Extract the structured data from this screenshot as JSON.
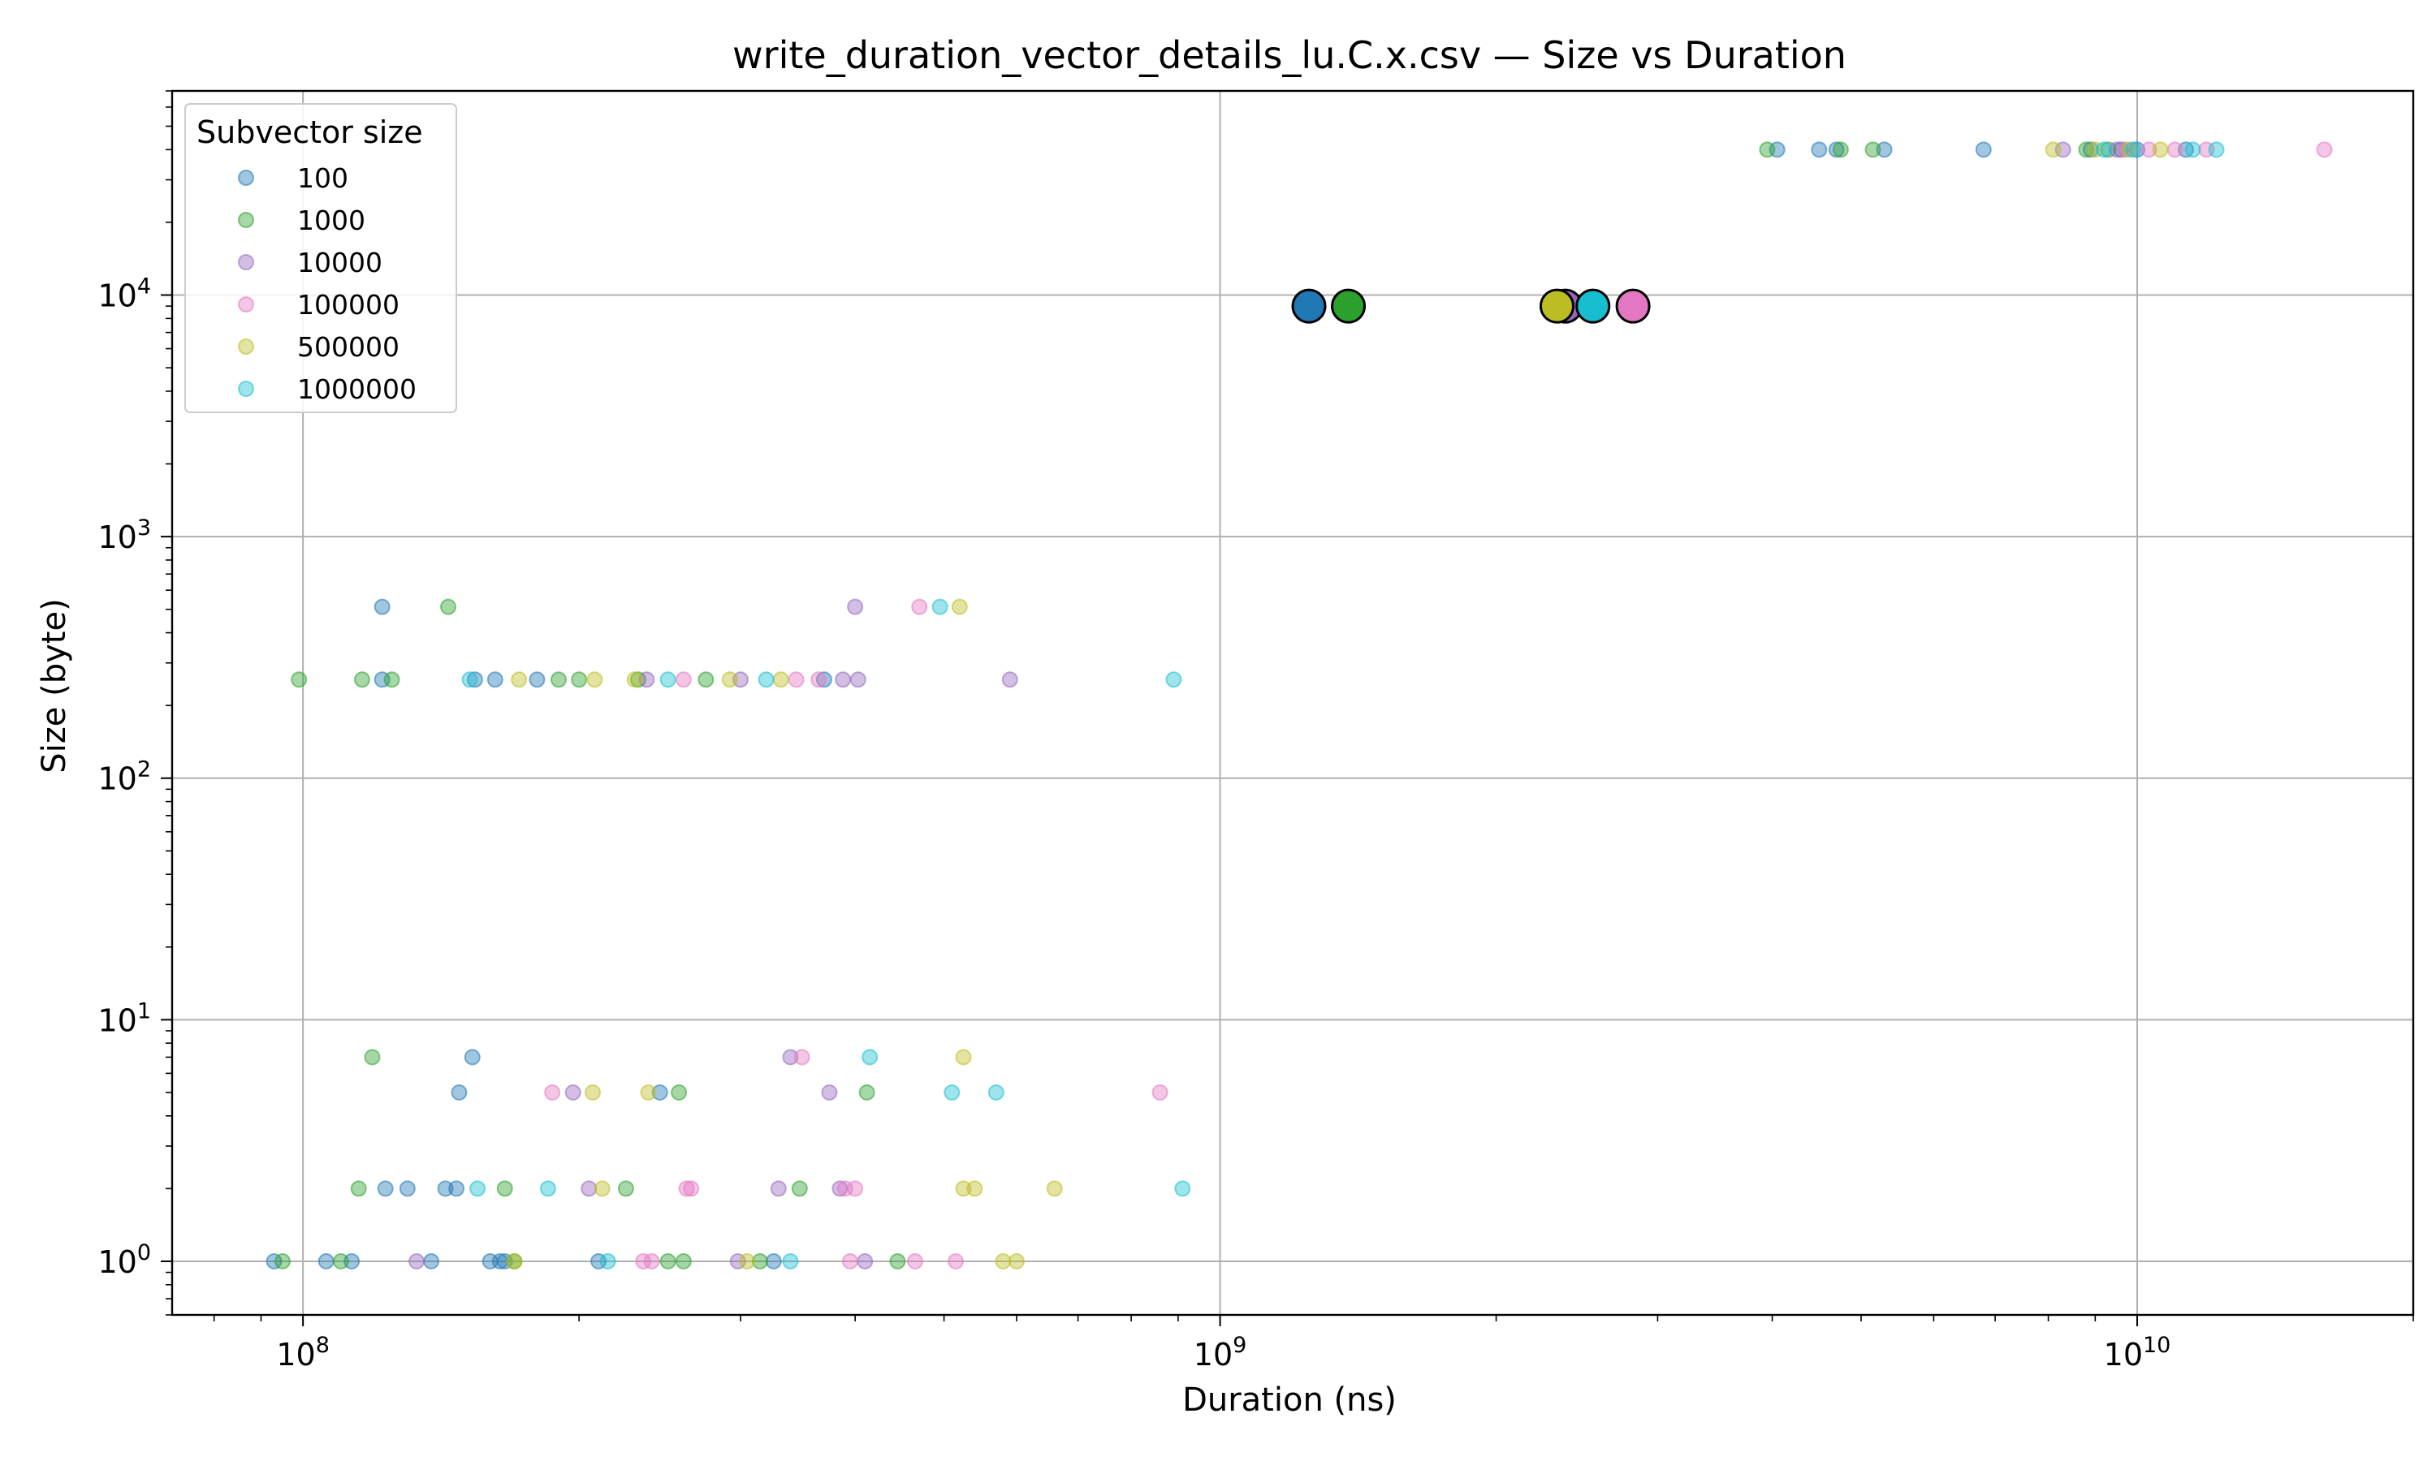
{
  "chart_data": {
    "type": "scatter",
    "title": "write_duration_vector_details_lu.C.x.csv — Size vs Duration",
    "xlabel": "Duration (ns)",
    "ylabel": "Size (byte)",
    "xscale": "log",
    "yscale": "log",
    "xlim": [
      72000000.0,
      20000000000.0
    ],
    "ylim": [
      0.6,
      70000
    ],
    "xticks": [
      {
        "value": 100000000.0,
        "base": "10",
        "exp": "8"
      },
      {
        "value": 1000000000.0,
        "base": "10",
        "exp": "9"
      },
      {
        "value": 10000000000.0,
        "base": "10",
        "exp": "10"
      }
    ],
    "yticks": [
      {
        "value": 1,
        "base": "10",
        "exp": "0"
      },
      {
        "value": 10,
        "base": "10",
        "exp": "1"
      },
      {
        "value": 100,
        "base": "10",
        "exp": "2"
      },
      {
        "value": 1000,
        "base": "10",
        "exp": "3"
      },
      {
        "value": 10000,
        "base": "10",
        "exp": "4"
      }
    ],
    "grid": true,
    "legend": {
      "title": "Subvector size",
      "position": "top-left"
    },
    "series": [
      {
        "name": "100",
        "color": "#1f77b4",
        "points": [
          [
            93000000.0,
            1
          ],
          [
            106000000.0,
            1
          ],
          [
            113000000.0,
            1
          ],
          [
            138000000.0,
            1
          ],
          [
            160000000.0,
            1
          ],
          [
            164000000.0,
            1
          ],
          [
            166000000.0,
            1
          ],
          [
            210000000.0,
            1
          ],
          [
            326000000.0,
            1
          ],
          [
            123000000.0,
            2
          ],
          [
            130000000.0,
            2
          ],
          [
            143000000.0,
            2
          ],
          [
            147000000.0,
            2
          ],
          [
            148000000.0,
            5
          ],
          [
            245000000.0,
            5
          ],
          [
            153000000.0,
            7
          ],
          [
            122000000.0,
            256
          ],
          [
            154000000.0,
            256
          ],
          [
            162000000.0,
            256
          ],
          [
            180000000.0,
            256
          ],
          [
            370000000.0,
            256
          ],
          [
            122000000.0,
            512
          ],
          [
            4050000000.0,
            40000
          ],
          [
            4500000000.0,
            40000
          ],
          [
            4700000000.0,
            40000
          ],
          [
            5300000000.0,
            40000
          ],
          [
            6800000000.0,
            40000
          ],
          [
            8900000000.0,
            40000
          ],
          [
            9600000000.0,
            40000
          ],
          [
            10000000000.0,
            40000
          ],
          [
            11300000000.0,
            40000
          ]
        ]
      },
      {
        "name": "1000",
        "color": "#2ca02c",
        "points": [
          [
            95000000.0,
            1
          ],
          [
            110000000.0,
            1
          ],
          [
            170000000.0,
            1
          ],
          [
            250000000.0,
            1
          ],
          [
            260000000.0,
            1
          ],
          [
            315000000.0,
            1
          ],
          [
            445000000.0,
            1
          ],
          [
            115000000.0,
            2
          ],
          [
            166000000.0,
            2
          ],
          [
            225000000.0,
            2
          ],
          [
            348000000.0,
            2
          ],
          [
            257000000.0,
            5
          ],
          [
            412000000.0,
            5
          ],
          [
            119000000.0,
            7
          ],
          [
            99000000.0,
            256
          ],
          [
            116000000.0,
            256
          ],
          [
            125000000.0,
            256
          ],
          [
            190000000.0,
            256
          ],
          [
            200000000.0,
            256
          ],
          [
            232000000.0,
            256
          ],
          [
            275000000.0,
            256
          ],
          [
            144000000.0,
            512
          ],
          [
            3950000000.0,
            40000
          ],
          [
            4750000000.0,
            40000
          ],
          [
            5150000000.0,
            40000
          ],
          [
            8800000000.0,
            40000
          ],
          [
            9300000000.0,
            40000
          ]
        ]
      },
      {
        "name": "10000",
        "color": "#9467bd",
        "points": [
          [
            133000000.0,
            1
          ],
          [
            298000000.0,
            1
          ],
          [
            410000000.0,
            1
          ],
          [
            205000000.0,
            2
          ],
          [
            330000000.0,
            2
          ],
          [
            385000000.0,
            2
          ],
          [
            197000000.0,
            5
          ],
          [
            375000000.0,
            5
          ],
          [
            340000000.0,
            7
          ],
          [
            237000000.0,
            256
          ],
          [
            300000000.0,
            256
          ],
          [
            388000000.0,
            256
          ],
          [
            403000000.0,
            256
          ],
          [
            590000000.0,
            256
          ],
          [
            400000000.0,
            512
          ],
          [
            8300000000.0,
            40000
          ],
          [
            9500000000.0,
            40000
          ]
        ]
      },
      {
        "name": "100000",
        "color": "#e377c2",
        "points": [
          [
            235000000.0,
            1
          ],
          [
            240000000.0,
            1
          ],
          [
            395000000.0,
            1
          ],
          [
            465000000.0,
            1
          ],
          [
            515000000.0,
            1
          ],
          [
            262000000.0,
            2
          ],
          [
            265000000.0,
            2
          ],
          [
            390000000.0,
            2
          ],
          [
            400000000.0,
            2
          ],
          [
            187000000.0,
            5
          ],
          [
            860000000.0,
            5
          ],
          [
            350000000.0,
            7
          ],
          [
            260000000.0,
            256
          ],
          [
            345000000.0,
            256
          ],
          [
            365000000.0,
            256
          ],
          [
            470000000.0,
            512
          ],
          [
            9700000000.0,
            40000
          ],
          [
            10300000000.0,
            40000
          ],
          [
            11000000000.0,
            40000
          ],
          [
            11900000000.0,
            40000
          ],
          [
            16000000000.0,
            40000
          ]
        ]
      },
      {
        "name": "500000",
        "color": "#bcbd22",
        "points": [
          [
            170000000.0,
            1
          ],
          [
            305000000.0,
            1
          ],
          [
            580000000.0,
            1
          ],
          [
            600000000.0,
            1
          ],
          [
            212000000.0,
            2
          ],
          [
            525000000.0,
            2
          ],
          [
            540000000.0,
            2
          ],
          [
            660000000.0,
            2
          ],
          [
            207000000.0,
            5
          ],
          [
            238000000.0,
            5
          ],
          [
            525000000.0,
            7
          ],
          [
            172000000.0,
            256
          ],
          [
            208000000.0,
            256
          ],
          [
            230000000.0,
            256
          ],
          [
            292000000.0,
            256
          ],
          [
            332000000.0,
            256
          ],
          [
            520000000.0,
            512
          ],
          [
            8100000000.0,
            40000
          ],
          [
            9000000000.0,
            40000
          ],
          [
            9800000000.0,
            40000
          ],
          [
            10600000000.0,
            40000
          ]
        ]
      },
      {
        "name": "1000000",
        "color": "#17becf",
        "points": [
          [
            215000000.0,
            1
          ],
          [
            340000000.0,
            1
          ],
          [
            155000000.0,
            2
          ],
          [
            185000000.0,
            2
          ],
          [
            910000000.0,
            2
          ],
          [
            510000000.0,
            5
          ],
          [
            570000000.0,
            5
          ],
          [
            415000000.0,
            7
          ],
          [
            152000000.0,
            256
          ],
          [
            250000000.0,
            256
          ],
          [
            320000000.0,
            256
          ],
          [
            890000000.0,
            256
          ],
          [
            495000000.0,
            512
          ],
          [
            9200000000.0,
            40000
          ],
          [
            9900000000.0,
            40000
          ],
          [
            11500000000.0,
            40000
          ],
          [
            12200000000.0,
            40000
          ]
        ]
      }
    ],
    "highlight_points": [
      {
        "series": "100",
        "color": "#1f77b4",
        "x": 1250000000.0,
        "y": 9000
      },
      {
        "series": "1000",
        "color": "#2ca02c",
        "x": 1380000000.0,
        "y": 9000
      },
      {
        "series": "10000",
        "color": "#9467bd",
        "x": 2380000000.0,
        "y": 9000
      },
      {
        "series": "500000",
        "color": "#bcbd22",
        "x": 2330000000.0,
        "y": 9000
      },
      {
        "series": "1000000",
        "color": "#17becf",
        "x": 2550000000.0,
        "y": 9000
      },
      {
        "series": "100000",
        "color": "#e377c2",
        "x": 2820000000.0,
        "y": 9000
      }
    ]
  }
}
